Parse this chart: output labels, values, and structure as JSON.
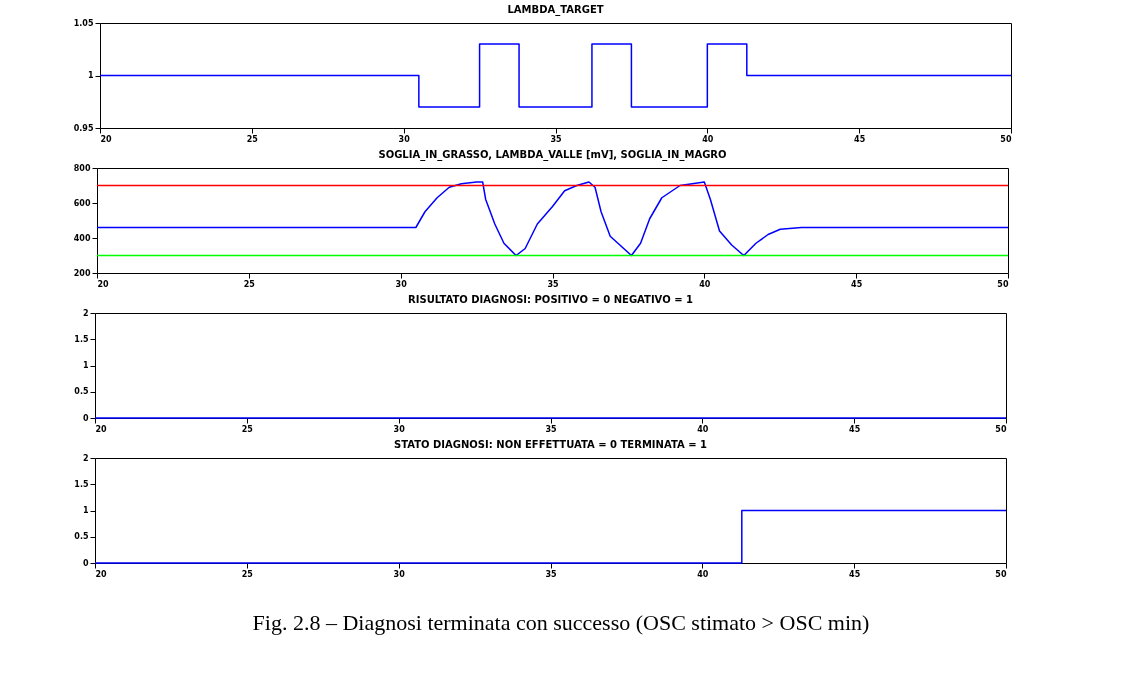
{
  "chart_data": [
    {
      "type": "step",
      "title": "LAMBDA_TARGET",
      "x": [
        20,
        30.5,
        32.5,
        33.8,
        36.2,
        37.5,
        40,
        41.3,
        50
      ],
      "xlim": [
        20,
        50
      ],
      "xticks": [
        20,
        25,
        30,
        35,
        40,
        45,
        50
      ],
      "ylim": [
        0.95,
        1.05
      ],
      "yticks": [
        0.95,
        1,
        1.05
      ],
      "series": [
        {
          "color": "#0000ff",
          "values": [
            1,
            0.97,
            1.03,
            0.97,
            1.03,
            0.97,
            1.03,
            1,
            1
          ]
        }
      ]
    },
    {
      "type": "line",
      "title": "SOGLIA_IN_GRASSO, LAMBDA_VALLE [mV], SOGLIA_IN_MAGRO",
      "x": [
        20,
        30.5,
        30.8,
        31.2,
        31.6,
        32,
        32.5,
        32.7,
        32.8,
        33.1,
        33.4,
        33.8,
        34.1,
        34.5,
        35,
        35.4,
        35.8,
        36.2,
        36.4,
        36.6,
        36.9,
        37.6,
        37.9,
        38.2,
        38.6,
        39.2,
        40,
        40.2,
        40.5,
        40.9,
        41.3,
        41.7,
        42.1,
        42.5,
        43.2,
        50
      ],
      "xlim": [
        20,
        50
      ],
      "xticks": [
        20,
        25,
        30,
        35,
        40,
        45,
        50
      ],
      "ylim": [
        200,
        800
      ],
      "yticks": [
        200,
        400,
        600,
        800
      ],
      "series": [
        {
          "color": "#0000ff",
          "values": [
            460,
            460,
            550,
            630,
            690,
            710,
            720,
            720,
            620,
            480,
            370,
            300,
            340,
            480,
            580,
            670,
            700,
            720,
            690,
            550,
            410,
            300,
            370,
            510,
            630,
            700,
            720,
            620,
            440,
            360,
            300,
            370,
            420,
            450,
            460,
            460
          ]
        }
      ],
      "ref_lines": [
        {
          "axis": "y",
          "value": 700,
          "color": "#ff0000"
        },
        {
          "axis": "y",
          "value": 300,
          "color": "#00ff00"
        }
      ]
    },
    {
      "type": "line",
      "title": "RISULTATO DIAGNOSI:  POSITIVO = 0  NEGATIVO = 1",
      "x": [
        20,
        50
      ],
      "xlim": [
        20,
        50
      ],
      "xticks": [
        20,
        25,
        30,
        35,
        40,
        45,
        50
      ],
      "ylim": [
        0,
        2
      ],
      "yticks": [
        0,
        0.5,
        1,
        1.5,
        2
      ],
      "series": [
        {
          "color": "#0000ff",
          "values": [
            0,
            0
          ]
        }
      ]
    },
    {
      "type": "step",
      "title": "STATO DIAGNOSI:  NON EFFETTUATA = 0  TERMINATA = 1",
      "x": [
        20,
        41.2,
        41.3,
        50
      ],
      "xlim": [
        20,
        50
      ],
      "xticks": [
        20,
        25,
        30,
        35,
        40,
        45,
        50
      ],
      "ylim": [
        0,
        2
      ],
      "yticks": [
        0,
        0.5,
        1,
        1.5,
        2
      ],
      "series": [
        {
          "color": "#0000ff",
          "values": [
            0,
            0,
            1,
            1
          ]
        }
      ],
      "annotations": [
        "Fig. 2.8 – Diagnosi terminata con successo (OSC stimato > OSC min)"
      ]
    }
  ]
}
